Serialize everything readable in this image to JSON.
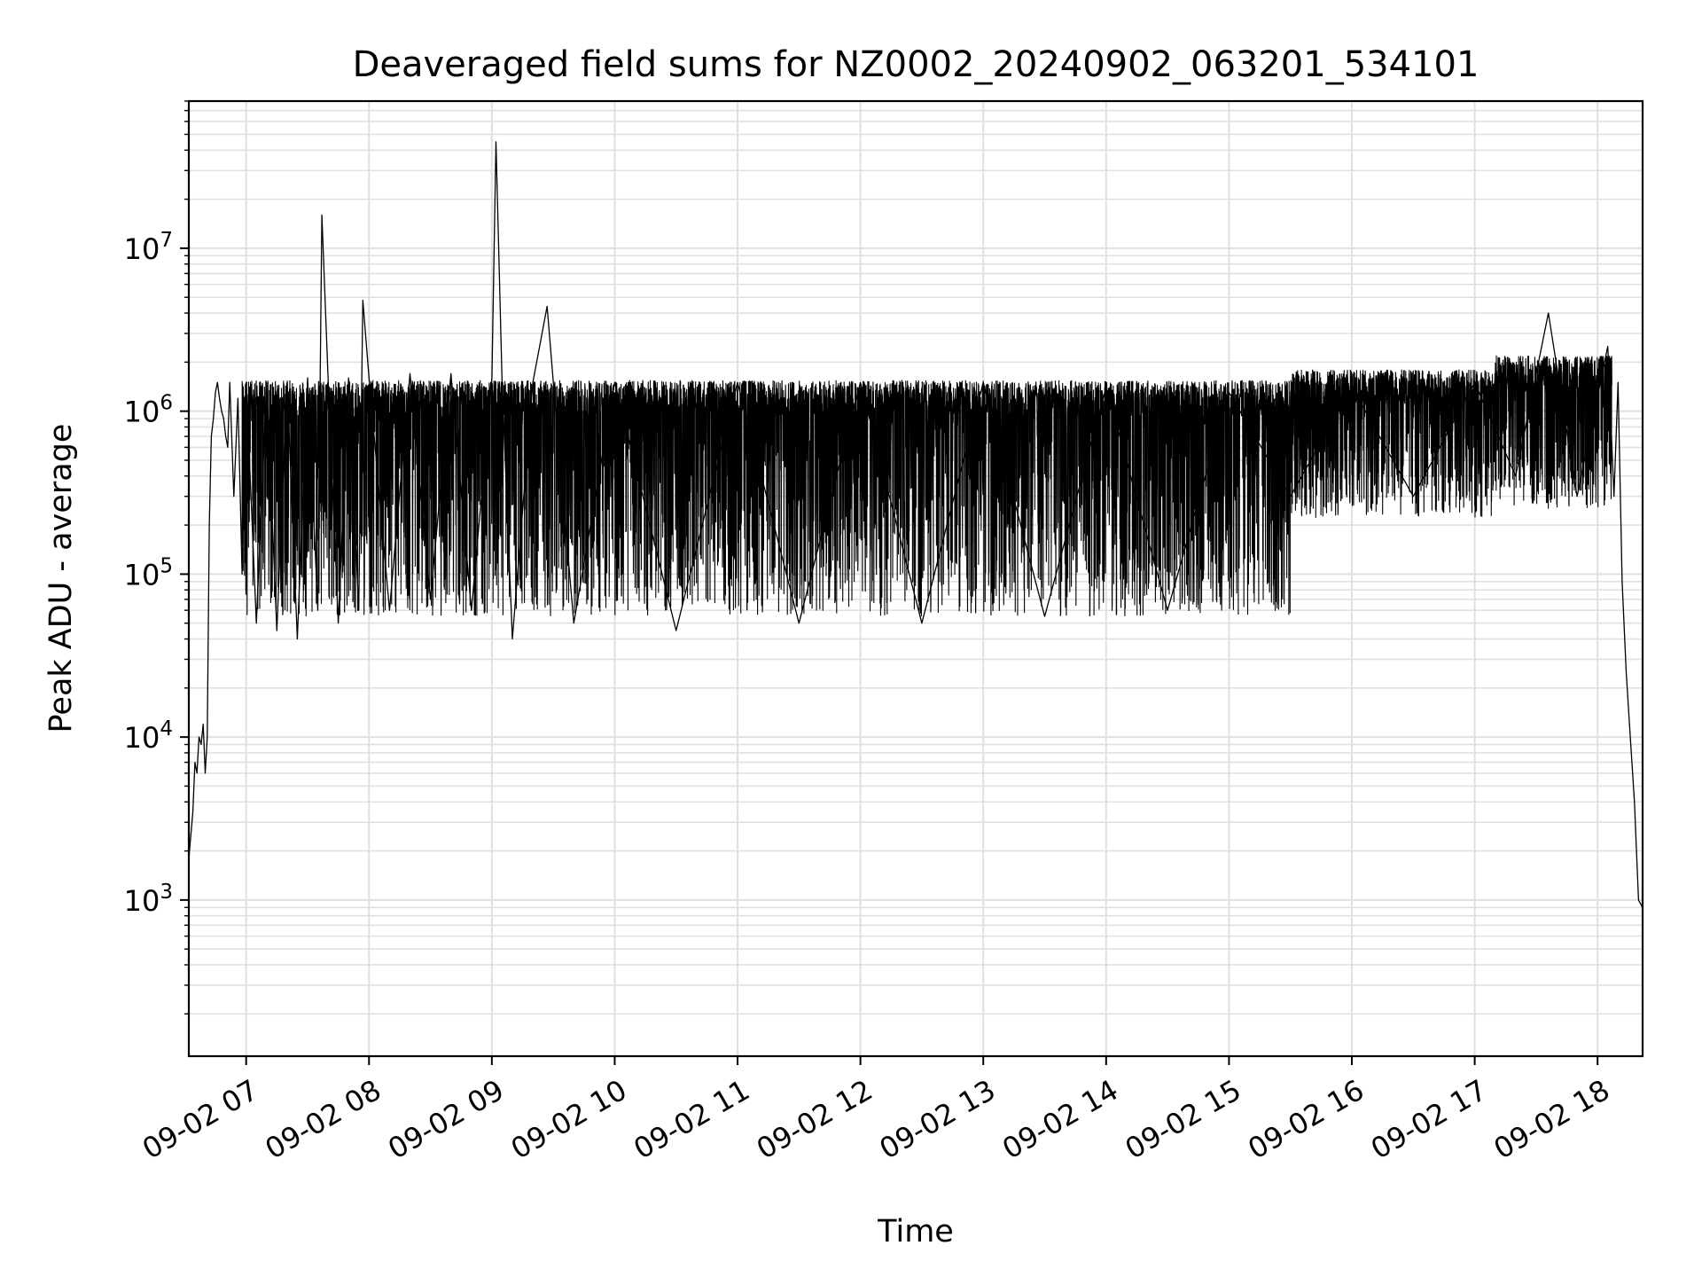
{
  "chart_data": {
    "type": "line",
    "title": "Deaveraged field sums for NZ0002_20240902_063201_534101",
    "xlabel": "Time",
    "ylabel": "Peak ADU - average",
    "y_scale": "log",
    "ylim": [
      110,
      80000000
    ],
    "xlim": [
      "2024-09-02 06:32",
      "2024-09-02 18:22"
    ],
    "grid": true,
    "line_color": "#000000",
    "grid_color": "#e0e0e0",
    "x_ticks": [
      {
        "value": "2024-09-02 07:00",
        "label": "09-02 07"
      },
      {
        "value": "2024-09-02 08:00",
        "label": "09-02 08"
      },
      {
        "value": "2024-09-02 09:00",
        "label": "09-02 09"
      },
      {
        "value": "2024-09-02 10:00",
        "label": "09-02 10"
      },
      {
        "value": "2024-09-02 11:00",
        "label": "09-02 11"
      },
      {
        "value": "2024-09-02 12:00",
        "label": "09-02 12"
      },
      {
        "value": "2024-09-02 13:00",
        "label": "09-02 13"
      },
      {
        "value": "2024-09-02 14:00",
        "label": "09-02 14"
      },
      {
        "value": "2024-09-02 15:00",
        "label": "09-02 15"
      },
      {
        "value": "2024-09-02 16:00",
        "label": "09-02 16"
      },
      {
        "value": "2024-09-02 17:00",
        "label": "09-02 17"
      },
      {
        "value": "2024-09-02 18:00",
        "label": "09-02 18"
      }
    ],
    "y_ticks": [
      {
        "value": 1000,
        "base": "10",
        "exp": "3"
      },
      {
        "value": 10000,
        "base": "10",
        "exp": "4"
      },
      {
        "value": 100000,
        "base": "10",
        "exp": "5"
      },
      {
        "value": 1000000,
        "base": "10",
        "exp": "6"
      },
      {
        "value": 10000000,
        "base": "10",
        "exp": "7"
      }
    ],
    "series": [
      {
        "x": [
          "2024-09-02 06:32",
          "2024-09-02 06:33",
          "2024-09-02 06:34",
          "2024-09-02 06:35",
          "2024-09-02 06:36",
          "2024-09-02 06:37",
          "2024-09-02 06:38",
          "2024-09-02 06:39",
          "2024-09-02 06:40",
          "2024-09-02 06:41",
          "2024-09-02 06:42",
          "2024-09-02 06:43",
          "2024-09-02 06:44",
          "2024-09-02 06:45",
          "2024-09-02 06:46",
          "2024-09-02 06:47",
          "2024-09-02 06:48",
          "2024-09-02 06:49",
          "2024-09-02 06:50",
          "2024-09-02 06:51",
          "2024-09-02 06:52",
          "2024-09-02 06:54",
          "2024-09-02 06:56",
          "2024-09-02 06:58",
          "2024-09-02 07:00",
          "2024-09-02 07:05",
          "2024-09-02 07:10",
          "2024-09-02 07:15",
          "2024-09-02 07:20",
          "2024-09-02 07:25",
          "2024-09-02 07:30",
          "2024-09-02 07:35",
          "2024-09-02 07:37",
          "2024-09-02 07:40",
          "2024-09-02 07:45",
          "2024-09-02 07:50",
          "2024-09-02 07:55",
          "2024-09-02 07:57",
          "2024-09-02 08:00",
          "2024-09-02 08:10",
          "2024-09-02 08:20",
          "2024-09-02 08:30",
          "2024-09-02 08:40",
          "2024-09-02 08:50",
          "2024-09-02 09:00",
          "2024-09-02 09:02",
          "2024-09-02 09:05",
          "2024-09-02 09:10",
          "2024-09-02 09:20",
          "2024-09-02 09:27",
          "2024-09-02 09:30",
          "2024-09-02 09:40",
          "2024-09-02 10:00",
          "2024-09-02 10:30",
          "2024-09-02 11:00",
          "2024-09-02 11:30",
          "2024-09-02 12:00",
          "2024-09-02 12:30",
          "2024-09-02 13:00",
          "2024-09-02 13:30",
          "2024-09-02 14:00",
          "2024-09-02 14:30",
          "2024-09-02 15:00",
          "2024-09-02 15:30",
          "2024-09-02 16:00",
          "2024-09-02 16:30",
          "2024-09-02 17:00",
          "2024-09-02 17:20",
          "2024-09-02 17:36",
          "2024-09-02 17:50",
          "2024-09-02 18:05",
          "2024-09-02 18:08",
          "2024-09-02 18:10",
          "2024-09-02 18:12",
          "2024-09-02 18:14",
          "2024-09-02 18:16",
          "2024-09-02 18:18",
          "2024-09-02 18:20",
          "2024-09-02 18:22"
        ],
        "y": [
          1800,
          2500,
          3500,
          7000,
          6000,
          10000,
          9000,
          12000,
          6000,
          10000,
          200000,
          700000,
          900000,
          1300000,
          1500000,
          1200000,
          1000000,
          900000,
          700000,
          600000,
          1500000,
          300000,
          1200000,
          100000,
          1500000,
          50000,
          1500000,
          45000,
          1500000,
          40000,
          1600000,
          60000,
          16000000,
          1600000,
          50000,
          1600000,
          60000,
          4800000,
          1600000,
          60000,
          1700000,
          70000,
          1700000,
          60000,
          1600000,
          45000000,
          1500000,
          40000,
          1500000,
          4400000,
          1500000,
          50000,
          1500000,
          45000,
          1500000,
          50000,
          1500000,
          50000,
          1500000,
          55000,
          1400000,
          60000,
          1300000,
          300000,
          1400000,
          300000,
          1500000,
          400000,
          4000000,
          300000,
          2500000,
          300000,
          1500000,
          90000,
          25000,
          10000,
          4000,
          1000,
          900
        ]
      }
    ]
  }
}
